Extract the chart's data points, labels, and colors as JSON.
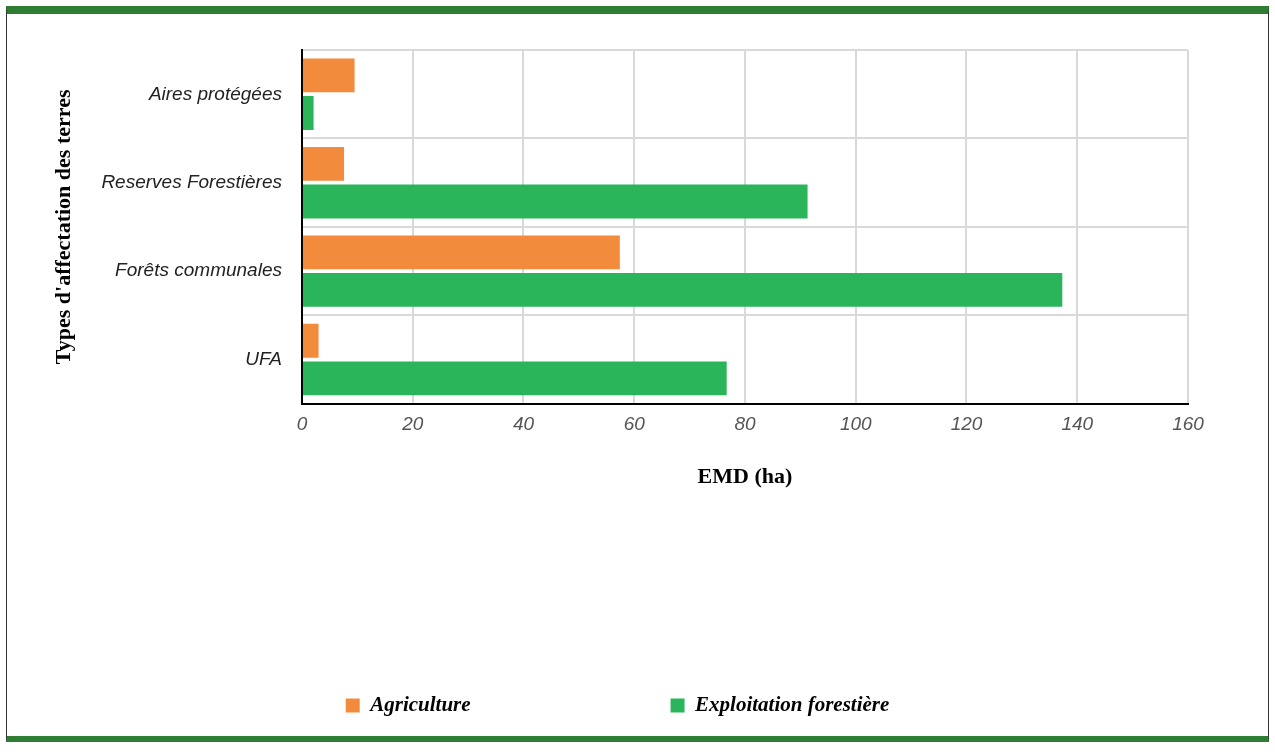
{
  "chart_data": {
    "type": "bar",
    "orientation": "horizontal",
    "xlabel": "EMD (ha)",
    "ylabel": "Types d'affectation des terres",
    "categories": [
      "Aires protégées",
      "Reserves Forestières",
      "Forêts communales",
      "UFA"
    ],
    "series": [
      {
        "name": "Agriculture",
        "color": "#f28b3c",
        "values": [
          9.5,
          7.6,
          57.4,
          3.0
        ]
      },
      {
        "name": "Exploitation forestière",
        "color": "#2ab55a",
        "values": [
          2.1,
          91.3,
          137.3,
          76.7
        ]
      }
    ],
    "xlim": [
      0,
      160
    ],
    "xticks": [
      0,
      20,
      40,
      60,
      80,
      100,
      120,
      140,
      160
    ],
    "grid": true,
    "legend": "bottom"
  }
}
